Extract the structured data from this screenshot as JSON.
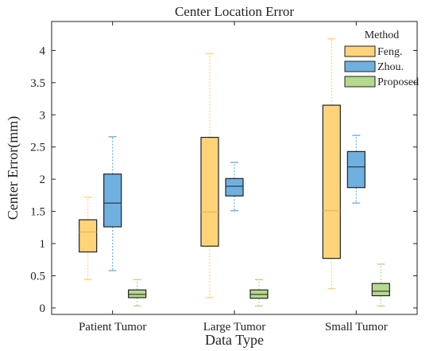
{
  "chart_data": {
    "type": "box",
    "title": "Center Location Error",
    "xlabel": "Data Type",
    "ylabel": "Center Error(mm)",
    "ylim": [
      -0.1,
      4.45
    ],
    "yticks": [
      0,
      0.5,
      1,
      1.5,
      2,
      2.5,
      3,
      3.5,
      4
    ],
    "ytick_labels": [
      "0",
      "0.5",
      "1",
      "1.5",
      "2",
      "2.5",
      "3",
      "3.5",
      "4"
    ],
    "categories": [
      "Patient Tumor",
      "Large Tumor",
      "Small Tumor"
    ],
    "grid": false,
    "legend": {
      "title": "Method",
      "placement": "top-right"
    },
    "series": [
      {
        "name": "Feng.",
        "color": "#FFD479",
        "edge_color": "#222222",
        "boxes": [
          {
            "min": 0.44,
            "q1": 0.87,
            "median": 1.18,
            "q3": 1.37,
            "max": 1.72
          },
          {
            "min": 0.16,
            "q1": 0.96,
            "median": 1.49,
            "q3": 2.65,
            "max": 3.95
          },
          {
            "min": 0.3,
            "q1": 0.77,
            "median": 1.51,
            "q3": 3.15,
            "max": 4.18
          }
        ]
      },
      {
        "name": "Zhou.",
        "color": "#6FB0E0",
        "edge_color": "#222222",
        "boxes": [
          {
            "min": 0.58,
            "q1": 1.26,
            "median": 1.63,
            "q3": 2.08,
            "max": 2.66
          },
          {
            "min": 1.51,
            "q1": 1.74,
            "median": 1.89,
            "q3": 2.01,
            "max": 2.26
          },
          {
            "min": 1.63,
            "q1": 1.87,
            "median": 2.19,
            "q3": 2.43,
            "max": 2.68
          }
        ]
      },
      {
        "name": "Proposed",
        "color": "#B5D98D",
        "edge_color": "#222222",
        "boxes": [
          {
            "min": 0.03,
            "q1": 0.16,
            "median": 0.21,
            "q3": 0.28,
            "max": 0.44
          },
          {
            "min": 0.03,
            "q1": 0.15,
            "median": 0.21,
            "q3": 0.28,
            "max": 0.44
          },
          {
            "min": 0.03,
            "q1": 0.19,
            "median": 0.26,
            "q3": 0.38,
            "max": 0.68
          }
        ]
      }
    ]
  }
}
